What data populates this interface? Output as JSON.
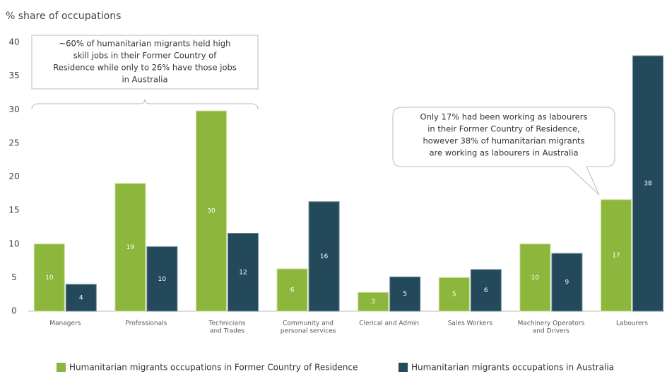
{
  "chart_data": {
    "type": "bar",
    "y_axis_title": "% share of occupations",
    "categories": [
      [
        "Managers"
      ],
      [
        "Professionals"
      ],
      [
        "Technicians",
        "and Trades"
      ],
      [
        "Community and",
        "personal services"
      ],
      [
        "Clerical and Admin"
      ],
      [
        "Sales Workers"
      ],
      [
        "Machinery Operators",
        "and Drivers"
      ],
      [
        "Labourers"
      ]
    ],
    "series": [
      {
        "name": "Humanitarian migrants occupations in Former Country of Residence",
        "color": "#8db63c",
        "values": [
          10,
          19,
          29.8,
          6.3,
          2.8,
          5,
          10,
          16.6
        ],
        "value_labels": [
          "10",
          "19",
          "30",
          "6",
          "3",
          "5",
          "10",
          "17"
        ]
      },
      {
        "name": "Humanitarian migrants occupations in Australia",
        "color": "#24495a",
        "values": [
          4,
          9.6,
          11.6,
          16.3,
          5.1,
          6.2,
          8.6,
          38
        ],
        "value_labels": [
          "4",
          "10",
          "12",
          "16",
          "5",
          "6",
          "9",
          "38"
        ]
      }
    ],
    "ylim": [
      0,
      40
    ],
    "yticks": [
      0,
      5,
      10,
      15,
      20,
      25,
      30,
      35,
      40
    ],
    "grid": false,
    "annotations": [
      [
        "~60% of humanitarian migrants held high",
        "skill jobs in their Former Country of",
        "Residence while only to 26% have those jobs",
        "in Australia"
      ],
      [
        "Only 17% had been working as labourers",
        "in their Former Country of Residence,",
        "however 38% of humanitarian migrants",
        "are working as labourers in Australia"
      ]
    ]
  }
}
